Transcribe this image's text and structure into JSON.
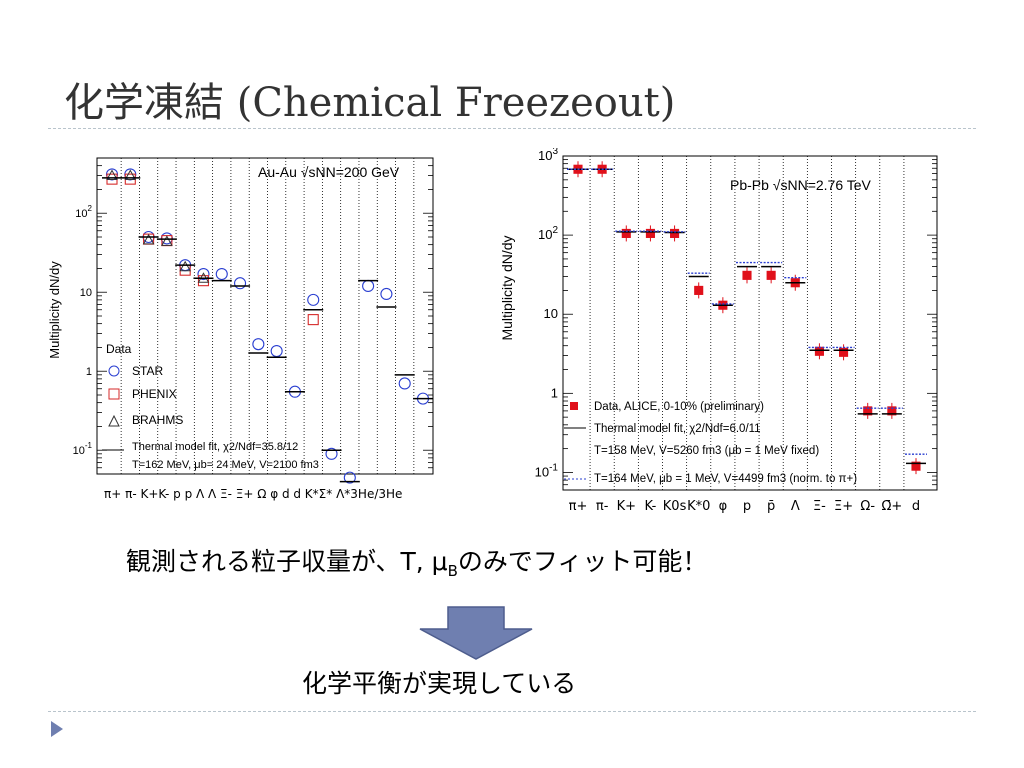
{
  "slide": {
    "title": "化学凍結 (Chemical Freezeout)",
    "caption1": "観測される粒子収量が、T, μBのみでフィット可能！",
    "caption1_parts": {
      "pre": "観測される粒子収量が、T, μ",
      "sub": "B",
      "post": "のみでフィット可能！"
    },
    "caption2": "化学平衡が実現している",
    "arrow_icon": "down-arrow-icon",
    "bullet_icon": "triangle-bullet-icon",
    "accent_color": "#6f7fb0"
  },
  "chart_data": [
    {
      "type": "scatter",
      "title": "Au-Au √sNN=200 GeV",
      "ylabel": "Multiplicity dN/dy",
      "yscale": "log",
      "ylim": [
        0.05,
        500
      ],
      "yticks": [
        {
          "v": 0.1,
          "t": "10-1"
        },
        {
          "v": 1,
          "t": "1"
        },
        {
          "v": 10,
          "t": "10"
        },
        {
          "v": 100,
          "t": "102"
        }
      ],
      "categories": [
        "π+",
        "π-",
        "K+",
        "K-",
        "p",
        "p̄",
        "Λ",
        "Λ̄",
        "Ξ-",
        "Ξ̄+",
        "Ω",
        "φ",
        "d",
        "d̄",
        "K*",
        "Σ*",
        "Λ*",
        "3He/3He"
      ],
      "category_labels_text": "π+ π- K+K- p p Λ Λ Ξ- Ξ+ Ω φ d d K*Σ* Λ*3He/3He",
      "legend": {
        "header": "Data",
        "entries": [
          "STAR",
          "PHENIX",
          "BRAHMS"
        ],
        "fit_line1": "Thermal model fit, χ2/Ndf=35.8/12",
        "fit_line2": "T=162 MeV, μb= 24 MeV, V=2100 fm3"
      },
      "series": [
        {
          "name": "STAR",
          "marker": "circle",
          "color": "#2a3fd1",
          "points": [
            [
              0,
              310
            ],
            [
              1,
              310
            ],
            [
              2,
              50
            ],
            [
              3,
              48
            ],
            [
              4,
              22
            ],
            [
              5,
              17
            ],
            [
              6,
              17
            ],
            [
              7,
              13
            ],
            [
              8,
              2.2
            ],
            [
              9,
              1.8
            ],
            [
              10,
              0.55
            ],
            [
              11,
              8
            ],
            [
              12,
              0.09
            ],
            [
              13,
              0.045
            ],
            [
              14,
              12
            ],
            [
              15,
              9.5
            ],
            [
              16,
              0.7
            ],
            [
              17,
              0.45
            ]
          ]
        },
        {
          "name": "PHENIX",
          "marker": "square",
          "color": "#d62a2a",
          "points": [
            [
              0,
              270
            ],
            [
              1,
              270
            ],
            [
              2,
              47
            ],
            [
              3,
              45
            ],
            [
              4,
              19
            ],
            [
              5,
              14
            ],
            [
              11,
              4.5
            ]
          ]
        },
        {
          "name": "BRAHMS",
          "marker": "triangle",
          "color": "#333333",
          "points": [
            [
              0,
              300
            ],
            [
              1,
              300
            ],
            [
              2,
              46
            ],
            [
              3,
              44
            ],
            [
              4,
              21
            ],
            [
              5,
              15
            ]
          ]
        },
        {
          "name": "Thermal model fit",
          "marker": "hline",
          "color": "#000000",
          "points": [
            [
              0,
              280
            ],
            [
              1,
              280
            ],
            [
              2,
              50
            ],
            [
              3,
              47
            ],
            [
              4,
              22
            ],
            [
              5,
              15
            ],
            [
              6,
              14
            ],
            [
              7,
              12
            ],
            [
              8,
              1.7
            ],
            [
              9,
              1.5
            ],
            [
              10,
              0.55
            ],
            [
              11,
              6
            ],
            [
              12,
              0.1
            ],
            [
              13,
              0.04
            ],
            [
              14,
              14
            ],
            [
              15,
              6.5
            ],
            [
              16,
              0.9
            ],
            [
              17,
              0.45
            ]
          ]
        }
      ]
    },
    {
      "type": "scatter",
      "title": "Pb-Pb √sNN=2.76 TeV",
      "ylabel": "Multiplicity dN/dy",
      "yscale": "log",
      "ylim": [
        0.06,
        1000
      ],
      "yticks": [
        {
          "v": 0.1,
          "t": "10-1"
        },
        {
          "v": 1,
          "t": "1"
        },
        {
          "v": 10,
          "t": "10"
        },
        {
          "v": 100,
          "t": "102"
        },
        {
          "v": 1000,
          "t": "103"
        }
      ],
      "categories": [
        "π+",
        "π-",
        "K+",
        "K-",
        "K0s",
        "K*0",
        "φ",
        "p",
        "p̄",
        "Λ",
        "Ξ-",
        "Ξ̄+",
        "Ω-",
        "Ω̄+",
        "d"
      ],
      "legend": {
        "entries": [
          "Data, ALICE, 0-10% (preliminary)",
          "Thermal model fit, χ2/Ndf=6.0/11",
          "T=158 MeV, V=5260 fm3 (μb = 1 MeV fixed)",
          "T=164 MeV, μb = 1 MeV, V=4499 fm3 (norm. to π+)"
        ]
      },
      "series": [
        {
          "name": "Data, ALICE, 0-10% (preliminary)",
          "marker": "square",
          "color": "#e0101a",
          "points": [
            [
              0,
              680
            ],
            [
              1,
              680
            ],
            [
              2,
              105
            ],
            [
              3,
              105
            ],
            [
              4,
              105
            ],
            [
              5,
              20
            ],
            [
              6,
              13
            ],
            [
              7,
              31
            ],
            [
              8,
              31
            ],
            [
              9,
              25
            ],
            [
              10,
              3.4
            ],
            [
              11,
              3.3
            ],
            [
              12,
              0.6
            ],
            [
              13,
              0.6
            ],
            [
              14,
              0.12
            ]
          ]
        },
        {
          "name": "Thermal model fit, χ2/Ndf=6.0/11",
          "marker": "hline",
          "color": "#000000",
          "points": [
            [
              0,
              680
            ],
            [
              1,
              680
            ],
            [
              2,
              110
            ],
            [
              3,
              110
            ],
            [
              4,
              108
            ],
            [
              5,
              30
            ],
            [
              6,
              13
            ],
            [
              7,
              40
            ],
            [
              8,
              40
            ],
            [
              9,
              25
            ],
            [
              10,
              3.5
            ],
            [
              11,
              3.5
            ],
            [
              12,
              0.55
            ],
            [
              13,
              0.55
            ],
            [
              14,
              0.13
            ]
          ]
        },
        {
          "name": "T=164 MeV, μb = 1 MeV, V=4499 fm3 (norm. to π+)",
          "marker": "dashline",
          "color": "#2a3fd1",
          "points": [
            [
              0,
              680
            ],
            [
              1,
              680
            ],
            [
              2,
              112
            ],
            [
              3,
              112
            ],
            [
              4,
              110
            ],
            [
              5,
              33
            ],
            [
              6,
              13.5
            ],
            [
              7,
              45
            ],
            [
              8,
              45
            ],
            [
              9,
              29
            ],
            [
              10,
              3.8
            ],
            [
              11,
              3.8
            ],
            [
              12,
              0.65
            ],
            [
              13,
              0.65
            ],
            [
              14,
              0.17
            ]
          ]
        }
      ]
    }
  ]
}
